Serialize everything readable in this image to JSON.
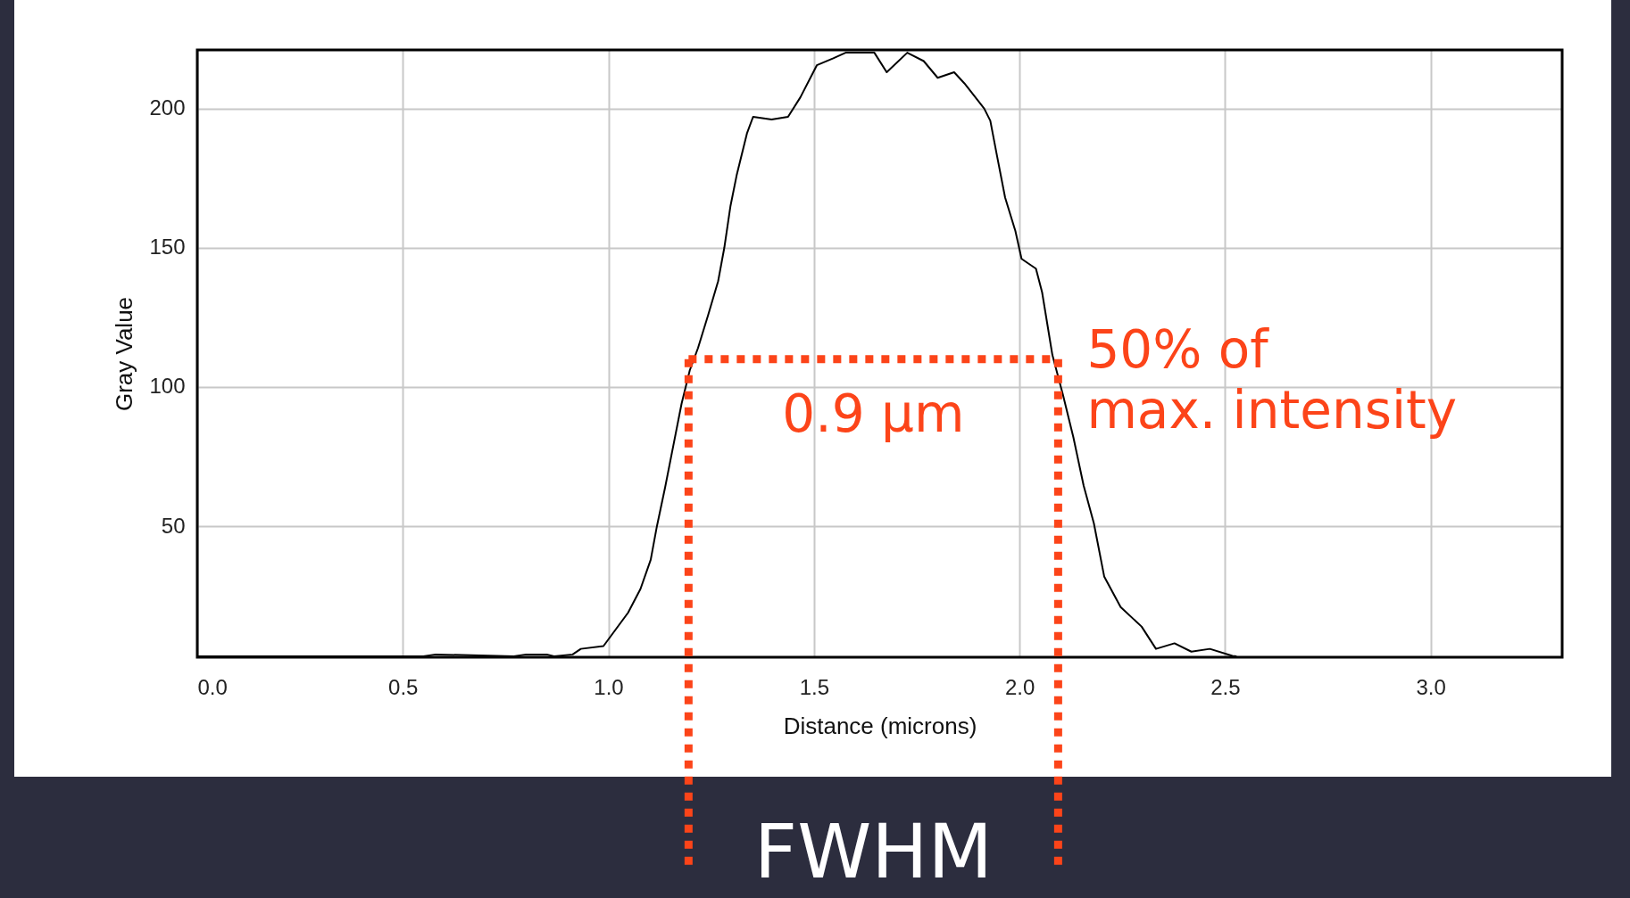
{
  "chart_data": {
    "type": "line",
    "xlabel": "Distance (microns)",
    "ylabel": "Gray Value",
    "x": [
      0.0,
      0.55,
      0.58,
      0.77,
      0.8,
      0.85,
      0.868,
      0.913,
      0.933,
      0.988,
      1.018,
      1.048,
      1.078,
      1.103,
      1.118,
      1.138,
      1.158,
      1.178,
      1.198,
      1.218,
      1.243,
      1.267,
      1.282,
      1.297,
      1.312,
      1.337,
      1.352,
      1.397,
      1.437,
      1.467,
      1.507,
      1.547,
      1.577,
      1.647,
      1.677,
      1.727,
      1.767,
      1.801,
      1.841,
      1.866,
      1.914,
      1.929,
      1.944,
      1.965,
      1.99,
      2.005,
      2.04,
      2.055,
      2.08,
      2.106,
      2.131,
      2.156,
      2.181,
      2.206,
      2.246,
      2.297,
      2.332,
      2.377,
      2.418,
      2.463,
      2.518,
      2.528
    ],
    "series": [
      {
        "color": "#000000",
        "values": [
          3.3,
          3.3,
          4,
          3.3,
          4,
          4,
          3.3,
          4,
          6,
          7,
          13,
          19,
          27.5,
          38,
          50,
          64,
          79,
          94,
          106,
          114,
          126,
          138,
          150,
          165,
          176,
          191,
          197,
          196,
          197,
          204,
          215.5,
          218,
          220,
          220,
          213,
          220,
          217,
          211,
          213,
          209,
          200,
          195.6,
          184,
          168,
          156,
          146,
          142.5,
          134,
          111.5,
          97,
          82,
          64.6,
          51,
          32,
          21,
          14,
          6,
          8,
          5,
          6,
          3.5,
          3.3
        ]
      }
    ],
    "xlim": [
      0,
      3.32
    ],
    "ylim": [
      3,
      221
    ],
    "xticks": [
      {
        "value": 0,
        "label": "0.0"
      },
      0.5,
      {
        "value": 1,
        "label": "1.0"
      },
      1.5,
      {
        "value": 2,
        "label": "2.0"
      },
      2.5,
      {
        "value": 3,
        "label": "3.0"
      }
    ],
    "yticks": [
      50,
      100,
      150,
      200
    ],
    "grid": true,
    "marker": "none",
    "line_style": "solid",
    "ref_lines": [
      {
        "axis": "y",
        "value": 110,
        "label": "50% of\nmax. intensity",
        "color": "#fc4419",
        "line_style": "dotted"
      },
      {
        "axis": "x",
        "value": 1.195,
        "color": "#fc4419",
        "line_style": "dotted"
      },
      {
        "axis": "x",
        "value": 2.094,
        "color": "#fc4419",
        "line_style": "dotted"
      }
    ],
    "annotations": [
      "0.9 µm",
      "FWHM"
    ]
  }
}
